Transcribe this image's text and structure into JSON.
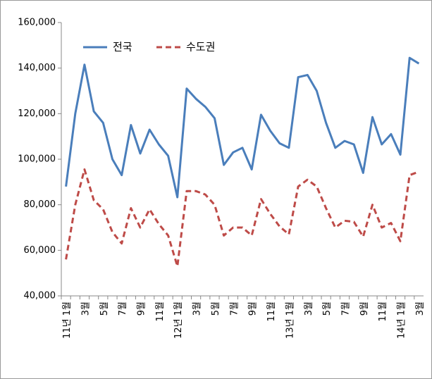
{
  "chart_data": {
    "type": "line",
    "categories": [
      "11년 1월",
      null,
      "3월",
      null,
      "5월",
      null,
      "7월",
      null,
      "9월",
      null,
      "11월",
      null,
      "12년 1월",
      null,
      "3월",
      null,
      "5월",
      null,
      "7월",
      null,
      "9월",
      null,
      "11월",
      null,
      "13년 1월",
      null,
      "3월",
      null,
      "5월",
      null,
      "7월",
      null,
      "9월",
      null,
      "11월",
      null,
      "14년 1월",
      null,
      "3월"
    ],
    "series": [
      {
        "name": "전국",
        "color": "#4a7ebb",
        "dash": false,
        "values": [
          88000,
          120000,
          141500,
          121000,
          116000,
          100000,
          93000,
          115000,
          102500,
          113000,
          106500,
          101500,
          83300,
          131000,
          126500,
          123000,
          118000,
          97500,
          103000,
          105000,
          95500,
          119500,
          112500,
          107000,
          105000,
          136000,
          137000,
          130000,
          116000,
          105000,
          108000,
          106500,
          94000,
          118500,
          106500,
          111000,
          102000,
          144500,
          142000
        ]
      },
      {
        "name": "수도권",
        "color": "#be4b48",
        "dash": true,
        "values": [
          56000,
          80000,
          95500,
          82000,
          78000,
          68000,
          63000,
          78500,
          70000,
          78000,
          71500,
          66500,
          53000,
          86000,
          86000,
          84500,
          80000,
          66500,
          70000,
          70000,
          66500,
          82500,
          76000,
          70500,
          67000,
          88000,
          91000,
          88000,
          78500,
          70000,
          73000,
          72500,
          66000,
          80000,
          70000,
          72000,
          64000,
          93000,
          94500
        ]
      }
    ],
    "ylim": [
      40000,
      160000
    ],
    "yticks": [
      {
        "value": 40000,
        "label": "40,000"
      },
      {
        "value": 60000,
        "label": "60,000"
      },
      {
        "value": 80000,
        "label": "80,000"
      },
      {
        "value": 100000,
        "label": "100,000"
      },
      {
        "value": 120000,
        "label": "120,000"
      },
      {
        "value": 140000,
        "label": "140,000"
      },
      {
        "value": 160000,
        "label": "160,000"
      }
    ],
    "grid": false,
    "legend": "top-left"
  }
}
